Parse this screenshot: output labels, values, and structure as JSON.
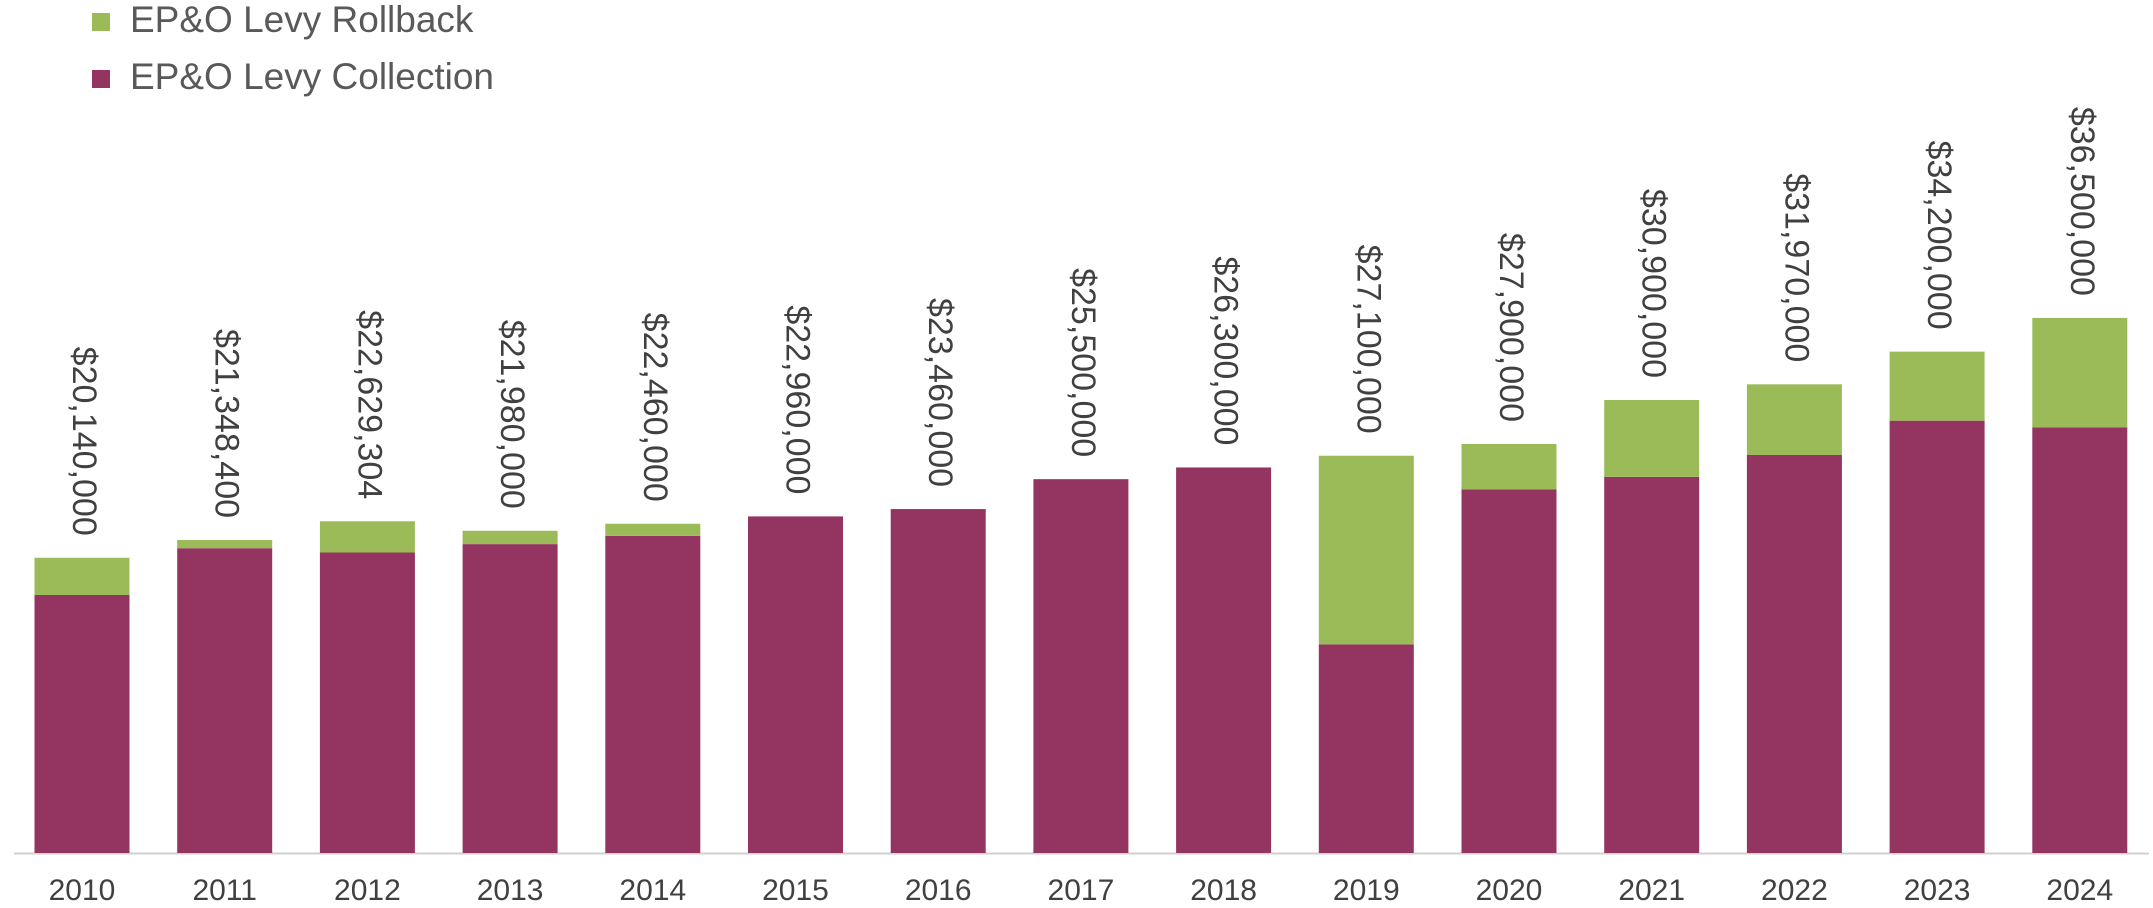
{
  "chart_data": {
    "type": "stacked_bar",
    "categories": [
      "2010",
      "2011",
      "2012",
      "2013",
      "2014",
      "2015",
      "2016",
      "2017",
      "2018",
      "2019",
      "2020",
      "2021",
      "2022",
      "2023",
      "2024"
    ],
    "series": [
      {
        "name": "EP&O Levy Collection",
        "color": "#943460",
        "values": [
          17600000,
          20790000,
          20500000,
          21070000,
          21630000,
          22960000,
          23460000,
          25500000,
          26300000,
          14230000,
          24810000,
          25660000,
          27150000,
          29490000,
          29030000
        ]
      },
      {
        "name": "EP&O Levy Rollback",
        "color": "#9bbb59",
        "values": [
          2540000,
          558400,
          2129304,
          910000,
          830000,
          0,
          0,
          0,
          0,
          12870000,
          3090000,
          5240000,
          4820000,
          4710000,
          7470000
        ]
      }
    ],
    "totals": [
      20140000,
      21348400,
      22629304,
      21980000,
      22460000,
      22960000,
      23460000,
      25500000,
      26300000,
      27100000,
      27900000,
      30900000,
      31970000,
      34200000,
      36500000
    ],
    "total_labels": [
      "$20,140,000",
      "$21,348,400",
      "$22,629,304",
      "$21,980,000",
      "$22,460,000",
      "$22,960,000",
      "$23,460,000",
      "$25,500,000",
      "$26,300,000",
      "$27,100,000",
      "$27,900,000",
      "$30,900,000",
      "$31,970,000",
      "$34,200,000",
      "$36,500,000"
    ],
    "ylim": [
      0,
      50000000
    ],
    "legend": "top-left"
  }
}
